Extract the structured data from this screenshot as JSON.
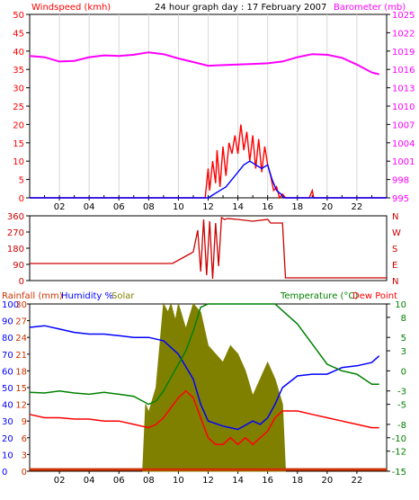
{
  "title": "24 hour graph day : 17 February 2007",
  "colors": {
    "wind_avg": "#0000ff",
    "wind_gust": "#ff0000",
    "barometer": "#ff00ff",
    "direction": "#cc0000",
    "humidity": "#0000ff",
    "solar": "#808000",
    "temperature": "#008000",
    "dewpoint": "#ff0000",
    "rain": "#cc3300",
    "title_text": "#000000"
  },
  "panel1": {
    "left_label": "Windspeed (kmh)",
    "right_label": "Barometer (mb)"
  },
  "panel2": {
    "right_labels": [
      "N",
      "W",
      "S",
      "E",
      "N"
    ]
  },
  "panel3": {
    "rain_label": "Rainfall (mm)",
    "humidity_label": "Humidity %",
    "solar_label": "Solar",
    "temp_label": "Temperature (°C)",
    "dew_label": "Dew Point"
  },
  "chart_data": [
    {
      "type": "line",
      "xlim": [
        0,
        24
      ],
      "x_ticks": [
        "02",
        "04",
        "06",
        "08",
        "10",
        "12",
        "14",
        "16",
        "18",
        "20",
        "22"
      ],
      "y_left": {
        "label": "Windspeed (kmh)",
        "ylim": [
          0,
          50
        ],
        "ticks": [
          0,
          5,
          10,
          15,
          20,
          25,
          30,
          35,
          40,
          45,
          50
        ]
      },
      "y_right": {
        "label": "Barometer (mb)",
        "ylim": [
          995,
          1025
        ],
        "ticks": [
          995,
          998,
          1001,
          1004,
          1007,
          1010,
          1013,
          1016,
          1019,
          1022,
          1025
        ]
      },
      "series": [
        {
          "key": "barometer",
          "axis": "right",
          "x": [
            0,
            1,
            2,
            3,
            4,
            5,
            6,
            7,
            8,
            9,
            10,
            11,
            12,
            13,
            14,
            15,
            16,
            17,
            18,
            19,
            20,
            21,
            22,
            23,
            23.5
          ],
          "y": [
            1018.2,
            1018.0,
            1017.3,
            1017.4,
            1018.0,
            1018.3,
            1018.2,
            1018.4,
            1018.8,
            1018.5,
            1017.8,
            1017.2,
            1016.6,
            1016.7,
            1016.8,
            1016.9,
            1017.0,
            1017.3,
            1018.0,
            1018.5,
            1018.4,
            1017.9,
            1016.8,
            1015.5,
            1015.2
          ]
        },
        {
          "key": "wind_gust",
          "axis": "left",
          "x": [
            0,
            11.8,
            12.0,
            12.1,
            12.3,
            12.5,
            12.6,
            12.8,
            13.0,
            13.2,
            13.4,
            13.6,
            13.8,
            14.0,
            14.2,
            14.4,
            14.6,
            14.8,
            15.0,
            15.2,
            15.4,
            15.6,
            15.8,
            16.0,
            16.2,
            16.4,
            16.6,
            16.8,
            17.0,
            17.2,
            18.8,
            19.0,
            19.1,
            19.3,
            24
          ],
          "y": [
            0,
            0,
            8,
            2,
            10,
            4,
            13,
            3,
            14,
            6,
            15,
            12,
            17,
            12,
            20,
            13,
            18,
            10,
            17,
            8,
            16,
            7,
            14,
            9,
            6,
            2,
            3,
            0,
            1,
            0,
            0,
            2,
            0,
            0,
            0
          ]
        },
        {
          "key": "wind_avg",
          "axis": "left",
          "x": [
            0,
            12.0,
            12.4,
            12.8,
            13.2,
            13.6,
            14.0,
            14.4,
            14.8,
            15.2,
            15.6,
            16.0,
            16.3,
            16.6,
            16.9,
            17.1,
            24
          ],
          "y": [
            0,
            0,
            1,
            2,
            3,
            5,
            7,
            9,
            10,
            9,
            8,
            9,
            5,
            2,
            1,
            0,
            0
          ]
        }
      ]
    },
    {
      "type": "line",
      "xlim": [
        0,
        24
      ],
      "y_left": {
        "label": "",
        "ylim": [
          0,
          360
        ],
        "ticks": [
          0,
          90,
          180,
          270,
          360
        ]
      },
      "y_right_labels": [
        "N",
        "W",
        "S",
        "E",
        "N"
      ],
      "series": [
        {
          "key": "direction",
          "x": [
            0,
            9.6,
            10.8,
            11.0,
            11.3,
            11.5,
            11.7,
            11.9,
            12.1,
            12.3,
            12.5,
            12.7,
            12.9,
            13.1,
            13.3,
            14.0,
            15.0,
            16.0,
            16.2,
            17.0,
            17.2,
            24
          ],
          "y": [
            95,
            95,
            150,
            160,
            280,
            50,
            340,
            30,
            330,
            10,
            320,
            80,
            350,
            340,
            345,
            340,
            330,
            340,
            320,
            320,
            15,
            15
          ]
        }
      ]
    },
    {
      "type": "line",
      "xlim": [
        0,
        24
      ],
      "x_ticks": [
        "02",
        "04",
        "06",
        "08",
        "10",
        "12",
        "14",
        "16",
        "18",
        "20",
        "22"
      ],
      "y_left_rain": {
        "label": "Rainfall (mm)",
        "ylim": [
          0,
          30
        ],
        "ticks": [
          0,
          3,
          6,
          9,
          12,
          15,
          18,
          21,
          24,
          27,
          30
        ]
      },
      "y_left_humidity": {
        "label": "Humidity %",
        "ylim": [
          0,
          100
        ],
        "ticks": [
          0,
          10,
          20,
          30,
          40,
          50,
          60,
          70,
          80,
          90,
          100
        ]
      },
      "y_right": {
        "label": "Temperature (°C)",
        "ylim": [
          -15,
          10
        ],
        "ticks": [
          -15,
          -12,
          -10,
          -8,
          -5,
          -3,
          0,
          3,
          5,
          8,
          10
        ]
      },
      "series": [
        {
          "key": "solar",
          "name": "Solar",
          "type": "area",
          "axis": "humidity",
          "x": [
            7.6,
            7.8,
            8.0,
            8.5,
            8.8,
            9.0,
            9.3,
            9.5,
            9.8,
            10.0,
            10.5,
            11.0,
            11.5,
            12.0,
            12.5,
            13.0,
            13.5,
            14.0,
            14.5,
            15.0,
            15.5,
            16.0,
            16.5,
            17.0,
            17.2
          ],
          "y": [
            0,
            40,
            35,
            50,
            80,
            100,
            95,
            100,
            90,
            100,
            85,
            100,
            95,
            75,
            70,
            65,
            75,
            70,
            60,
            45,
            55,
            65,
            55,
            40,
            0
          ]
        },
        {
          "key": "humidity",
          "name": "Humidity %",
          "axis": "humidity",
          "x": [
            0,
            1,
            2,
            3,
            4,
            5,
            6,
            7,
            8,
            9,
            10,
            11,
            11.5,
            12,
            13,
            14,
            15,
            15.5,
            16,
            16.5,
            17,
            18,
            19,
            20,
            21,
            22,
            23,
            23.5
          ],
          "y": [
            86,
            87,
            85,
            83,
            82,
            82,
            81,
            80,
            80,
            78,
            70,
            55,
            40,
            30,
            27,
            25,
            30,
            28,
            32,
            40,
            50,
            57,
            58,
            58,
            62,
            63,
            65,
            69
          ]
        },
        {
          "key": "temperature",
          "name": "Temperature (°C)",
          "axis": "temp",
          "x": [
            0,
            1,
            2,
            3,
            4,
            5,
            6,
            7,
            8,
            8.5,
            9,
            9.5,
            10,
            10.5,
            11,
            11.5,
            12,
            12.5,
            13,
            14,
            15,
            16,
            16.5,
            17,
            18,
            19,
            20,
            21,
            22,
            23,
            23.5
          ],
          "y": [
            -3.2,
            -3.3,
            -3.0,
            -3.3,
            -3.5,
            -3.2,
            -3.5,
            -3.8,
            -5.0,
            -4.5,
            -3.0,
            -1.0,
            1.0,
            3.0,
            6.0,
            9.5,
            12,
            12,
            12,
            12,
            12,
            12,
            10.5,
            9,
            7,
            4,
            1,
            0,
            -0.5,
            -2.0,
            -2.0
          ]
        },
        {
          "key": "dewpoint",
          "name": "Dew Point",
          "axis": "temp",
          "x": [
            0,
            1,
            2,
            3,
            4,
            5,
            6,
            7,
            8,
            8.5,
            9,
            10,
            10.5,
            11,
            11.5,
            12,
            12.5,
            13,
            13.5,
            14,
            14.5,
            15,
            15.5,
            16,
            16.5,
            17,
            18,
            19,
            20,
            21,
            22,
            23,
            23.5
          ],
          "y": [
            -6.5,
            -7.0,
            -7.0,
            -7.2,
            -7.2,
            -7.5,
            -7.5,
            -8.0,
            -8.5,
            -8.0,
            -7.0,
            -4.0,
            -3.0,
            -4.0,
            -7.0,
            -10.0,
            -11.0,
            -11.0,
            -10.0,
            -11.0,
            -10.0,
            -11.0,
            -10.0,
            -9.0,
            -7.0,
            -6.0,
            -6.0,
            -6.5,
            -7.0,
            -7.5,
            -8.0,
            -8.5,
            -8.5
          ]
        },
        {
          "key": "rain",
          "name": "Rainfall (mm)",
          "axis": "rain",
          "x": [
            0,
            24
          ],
          "y": [
            0.3,
            0.3
          ]
        }
      ]
    }
  ]
}
